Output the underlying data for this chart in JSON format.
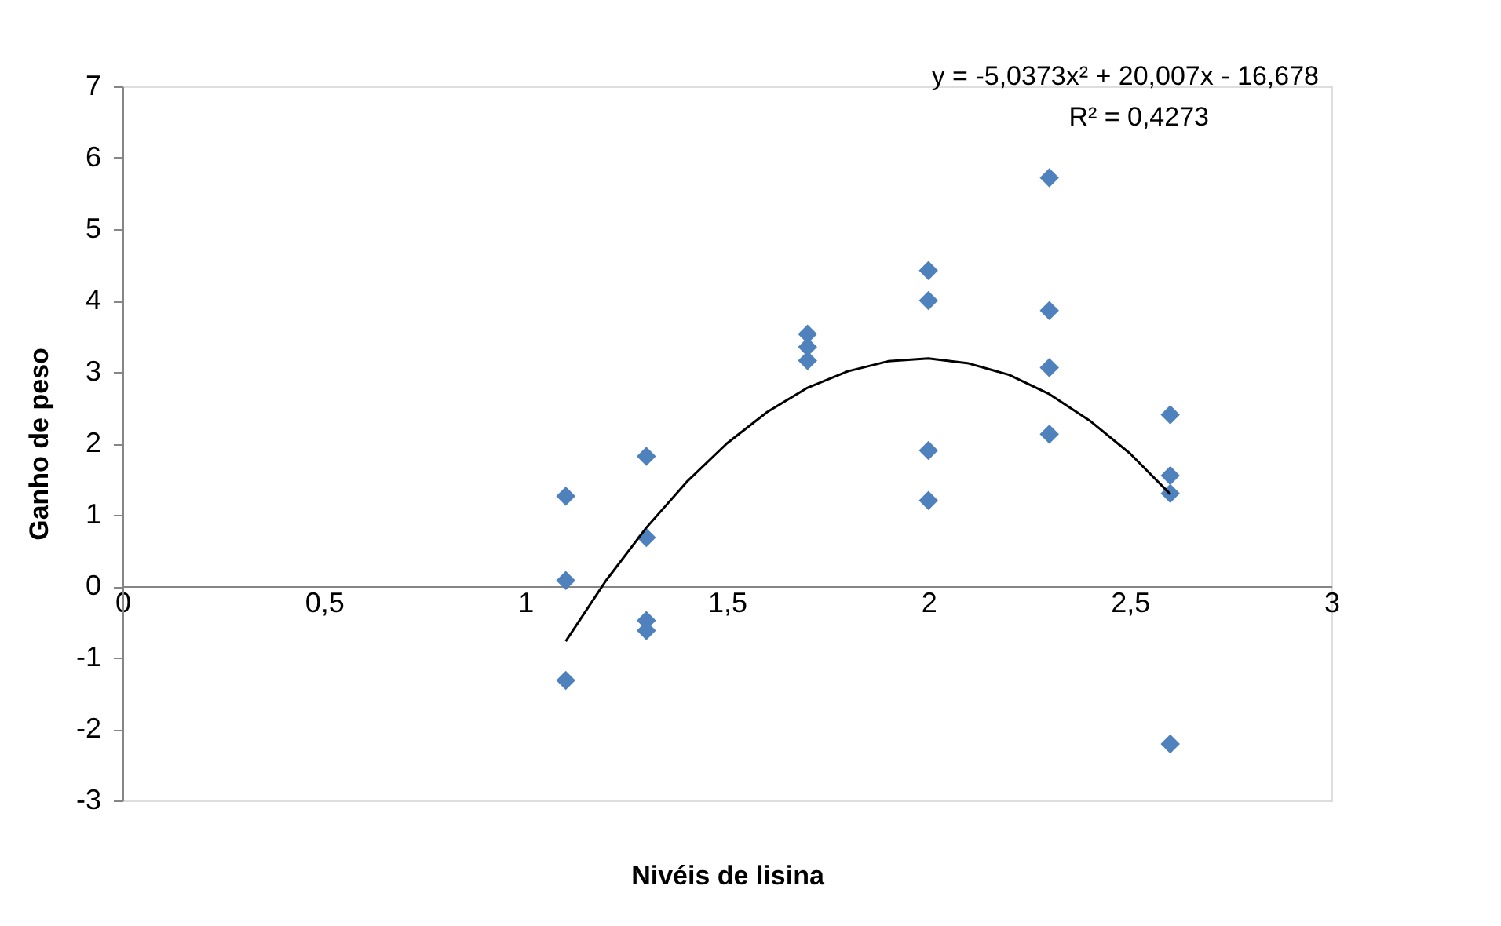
{
  "chart_data": {
    "type": "scatter",
    "xlabel": "Nivéis de lisina",
    "ylabel": "Ganho de peso",
    "xlim": [
      0,
      3
    ],
    "xticks": [
      0,
      {
        "value": 0.5,
        "label": "0,5"
      },
      1,
      {
        "value": 1.5,
        "label": "1,5"
      },
      2,
      {
        "value": 2.5,
        "label": "2,5"
      },
      3
    ],
    "ylim": [
      -3,
      7
    ],
    "yticks": [
      -3,
      -2,
      -1,
      0,
      1,
      2,
      3,
      4,
      5,
      6,
      7
    ],
    "grid": false,
    "marker": "diamond",
    "annotations": [
      "y = -5,0373x² + 20,007x - 16,678",
      "R² = 0,4273"
    ],
    "series": [
      {
        "color": "#4f81bd",
        "x": [
          1.1,
          1.1,
          1.1,
          1.3,
          1.3,
          1.3,
          1.3,
          1.7,
          1.7,
          1.7,
          2.0,
          2.0,
          2.0,
          2.0,
          2.3,
          2.3,
          2.3,
          2.3,
          2.6,
          2.6,
          2.6,
          2.6
        ],
        "values": [
          1.26,
          0.08,
          -1.32,
          1.82,
          0.68,
          -0.48,
          -0.62,
          3.53,
          3.35,
          3.16,
          4.42,
          4.0,
          1.9,
          1.2,
          5.72,
          3.86,
          3.06,
          2.13,
          2.4,
          1.55,
          1.3,
          -2.21
        ]
      },
      {
        "type": "line",
        "color": "#000000",
        "marker": "none",
        "line_style": "solid",
        "x": [
          1.1,
          1.2,
          1.3,
          1.4,
          1.5,
          1.6,
          1.7,
          1.8,
          1.9,
          2.0,
          2.1,
          2.2,
          2.3,
          2.4,
          2.5,
          2.6
        ],
        "values": [
          -0.77,
          0.08,
          0.82,
          1.46,
          2.0,
          2.44,
          2.78,
          3.01,
          3.15,
          3.19,
          3.12,
          2.96,
          2.69,
          2.32,
          1.86,
          1.29
        ]
      }
    ]
  }
}
